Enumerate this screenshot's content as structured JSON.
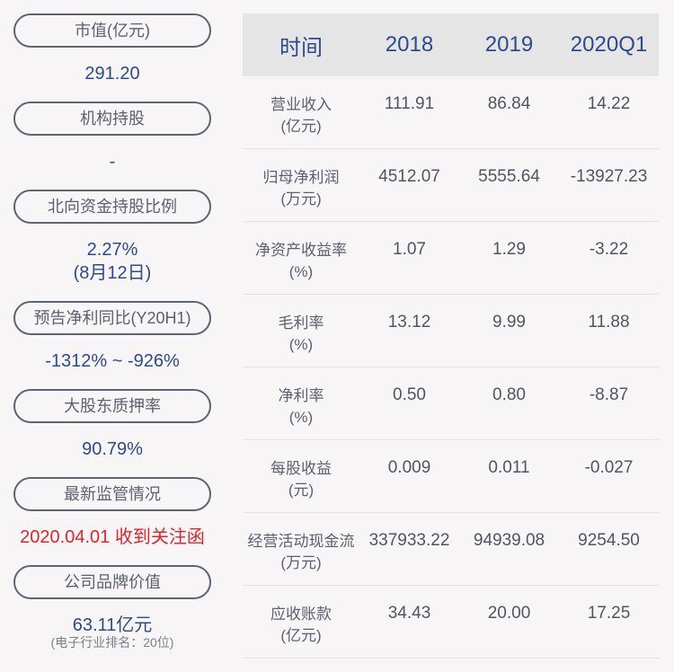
{
  "left_panel": {
    "items": [
      {
        "label": "市值(亿元)",
        "value": "291.20"
      },
      {
        "label": "机构持股",
        "value": "-"
      },
      {
        "label": "北向资金持股比例",
        "value": "2.27%",
        "value2": "(8月12日)"
      },
      {
        "label": "预告净利同比(Y20H1)",
        "value": "-1312% ~ -926%"
      },
      {
        "label": "大股东质押率",
        "value": "90.79%"
      },
      {
        "label": "最新监管情况",
        "value": "2020.04.01 收到关注函"
      },
      {
        "label": "公司品牌价值",
        "value": "63.11亿元",
        "note": "(电子行业排名：20位)"
      }
    ]
  },
  "table": {
    "headers": [
      "时间",
      "2018",
      "2019",
      "2020Q1"
    ],
    "rows": [
      {
        "name": "营业收入",
        "unit": "(亿元)",
        "values": [
          "111.91",
          "86.84",
          "14.22"
        ]
      },
      {
        "name": "归母净利润",
        "unit": "(万元)",
        "values": [
          "4512.07",
          "5555.64",
          "-13927.23"
        ]
      },
      {
        "name": "净资产收益率",
        "unit": "(%)",
        "values": [
          "1.07",
          "1.29",
          "-3.22"
        ]
      },
      {
        "name": "毛利率",
        "unit": "(%)",
        "values": [
          "13.12",
          "9.99",
          "11.88"
        ]
      },
      {
        "name": "净利率",
        "unit": "(%)",
        "values": [
          "0.50",
          "0.80",
          "-8.87"
        ]
      },
      {
        "name": "每股收益",
        "unit": "(元)",
        "values": [
          "0.009",
          "0.011",
          "-0.027"
        ]
      },
      {
        "name": "经营活动现金流",
        "unit": "(万元)",
        "values": [
          "337933.22",
          "94939.08",
          "9254.50"
        ]
      },
      {
        "name": "应收账款",
        "unit": "(亿元)",
        "values": [
          "34.43",
          "20.00",
          "17.25"
        ]
      }
    ]
  },
  "colors": {
    "accent_blue": "#2d4a8e",
    "alert_red": "#e0252c",
    "header_bg": "#e5e5e5",
    "page_bg": "#f8f5f6"
  }
}
